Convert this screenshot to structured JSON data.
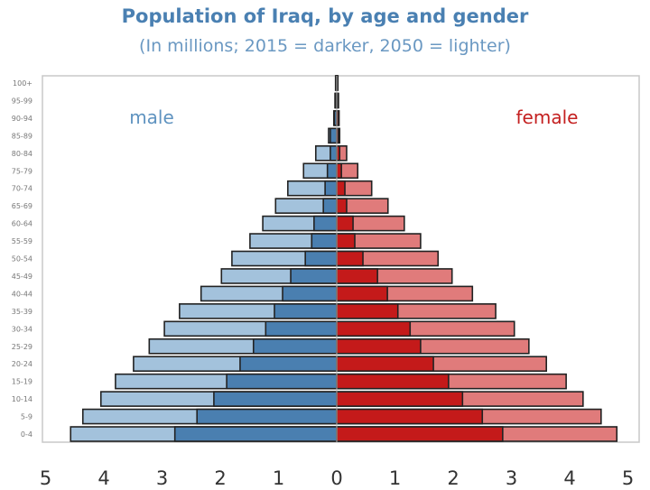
{
  "chart_data": {
    "type": "bar",
    "orientation": "horizontal-pyramid",
    "title": "Population of Iraq, by age and gender",
    "subtitle": "(In millions; 2015 = darker, 2050 = lighter)",
    "categories": [
      "100+",
      "95-99",
      "90-94",
      "85-89",
      "80-84",
      "75-79",
      "70-74",
      "65-69",
      "60-64",
      "55-59",
      "50-54",
      "45-49",
      "40-44",
      "35-39",
      "30-34",
      "25-29",
      "20-24",
      "15-19",
      "10-14",
      "5-9",
      "0-4"
    ],
    "labels": {
      "male": "male",
      "female": "female"
    },
    "series": [
      {
        "gender": "male",
        "year": "2015",
        "color": "#4a7fb0",
        "values": [
          0.01,
          0.02,
          0.04,
          0.11,
          0.11,
          0.16,
          0.2,
          0.23,
          0.39,
          0.43,
          0.54,
          0.79,
          0.93,
          1.07,
          1.22,
          1.43,
          1.66,
          1.89,
          2.11,
          2.4,
          2.78
        ]
      },
      {
        "gender": "male",
        "year": "2050",
        "color": "#a3c2dc",
        "values": [
          0.02,
          0.03,
          0.05,
          0.14,
          0.36,
          0.57,
          0.84,
          1.05,
          1.27,
          1.49,
          1.8,
          1.98,
          2.33,
          2.7,
          2.96,
          3.22,
          3.49,
          3.8,
          4.05,
          4.36,
          4.57
        ]
      },
      {
        "gender": "female",
        "year": "2015",
        "color": "#c41a1a",
        "values": [
          0.01,
          0.02,
          0.03,
          0.03,
          0.05,
          0.08,
          0.14,
          0.17,
          0.28,
          0.31,
          0.45,
          0.7,
          0.87,
          1.05,
          1.26,
          1.44,
          1.66,
          1.92,
          2.16,
          2.5,
          2.85
        ]
      },
      {
        "gender": "female",
        "year": "2050",
        "color": "#e07b7b",
        "values": [
          0.02,
          0.03,
          0.04,
          0.05,
          0.17,
          0.36,
          0.6,
          0.88,
          1.16,
          1.44,
          1.74,
          1.98,
          2.33,
          2.73,
          3.05,
          3.3,
          3.6,
          3.94,
          4.23,
          4.54,
          4.81
        ]
      }
    ],
    "x_ticks": [
      "5",
      "4",
      "3",
      "2",
      "1",
      "0",
      "1",
      "2",
      "3",
      "4",
      "5"
    ],
    "xlim": [
      -5,
      5
    ],
    "grid": false,
    "legend": "none"
  }
}
